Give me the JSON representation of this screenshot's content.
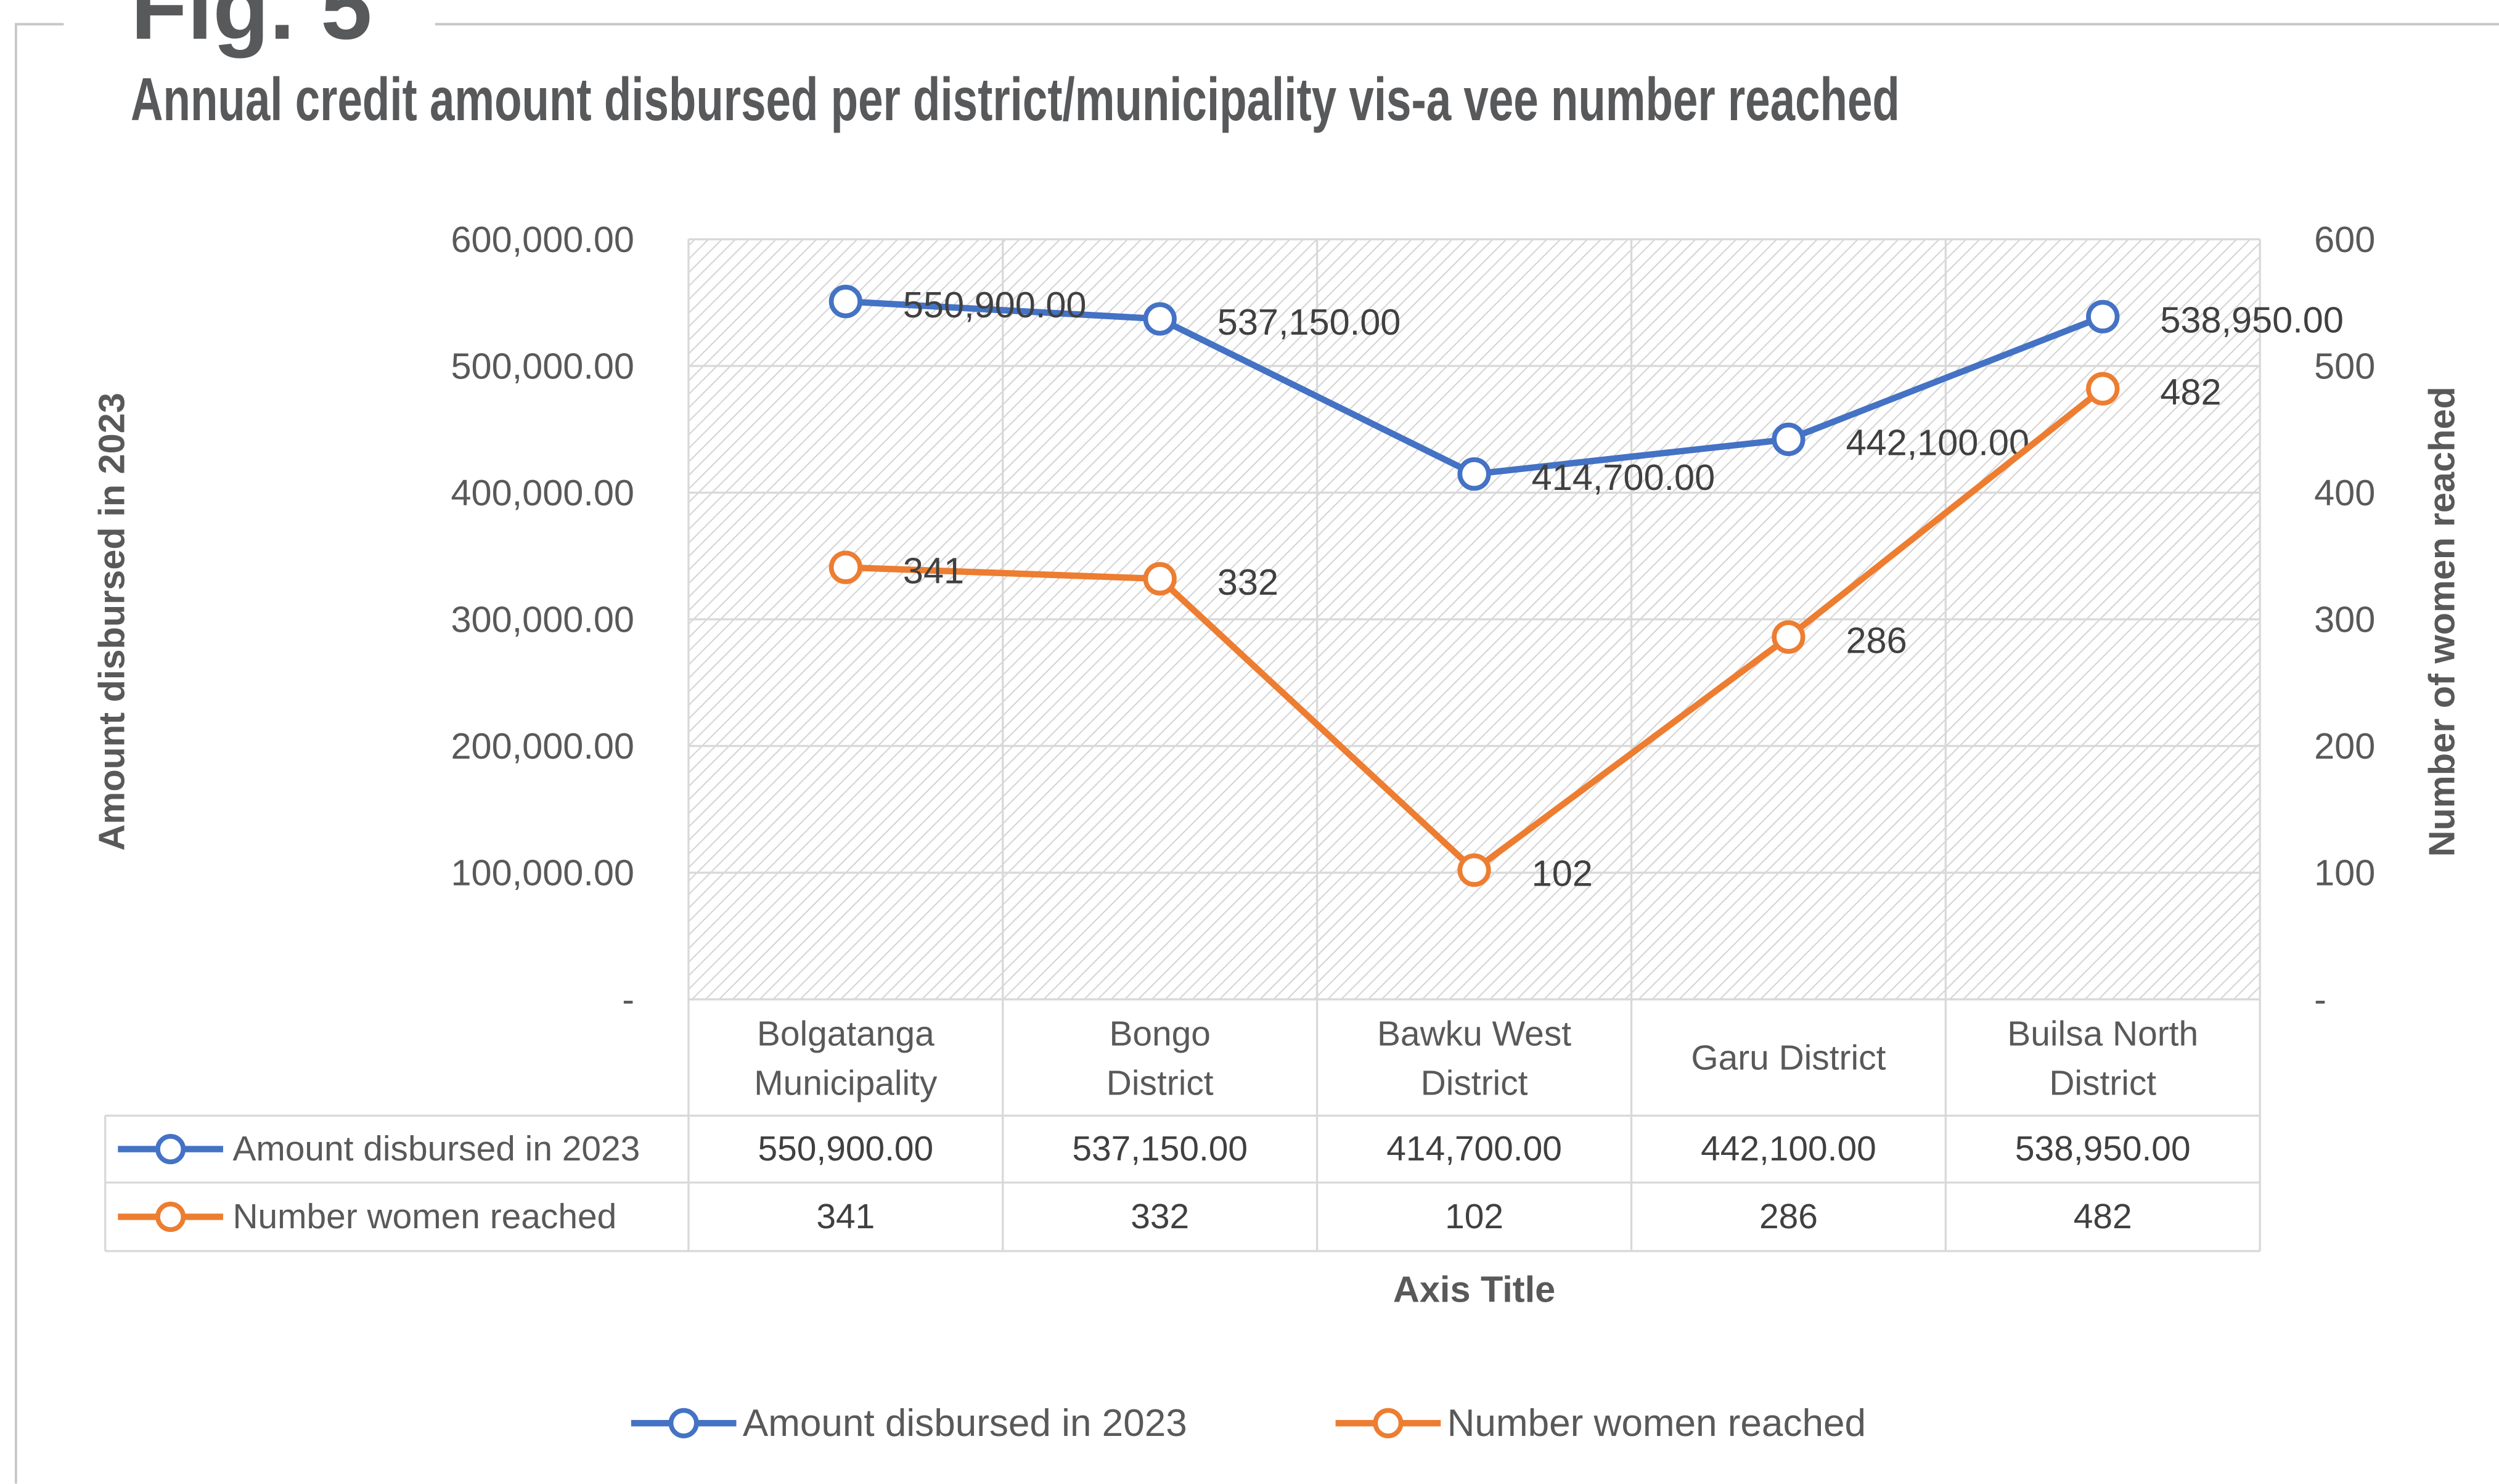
{
  "chart_data": {
    "type": "line",
    "figure_label": "Fig. 5",
    "title": "Annual credit amount disbursed per district/municipality vis-a vee number reached",
    "categories": [
      "Bolgatanga Municipality",
      "Bongo District",
      "Bawku West District",
      "Garu District",
      "Builsa North District"
    ],
    "series": [
      {
        "name": "Amount disbursed in 2023",
        "color": "#4472c4",
        "axis": "y",
        "values": [
          550900,
          537150,
          414700,
          442100,
          538950
        ],
        "value_labels": [
          "550,900.00",
          "537,150.00",
          "414,700.00",
          "442,100.00",
          "538,950.00"
        ]
      },
      {
        "name": "Number women reached",
        "color": "#ed7d31",
        "axis": "y2",
        "values": [
          341,
          332,
          102,
          286,
          482
        ]
      }
    ],
    "ylim": [
      0,
      600000
    ],
    "yticks": [
      {
        "value": 0,
        "label": "-"
      },
      {
        "value": 100000,
        "label": "100,000.00"
      },
      {
        "value": 200000,
        "label": "200,000.00"
      },
      {
        "value": 300000,
        "label": "300,000.00"
      },
      {
        "value": 400000,
        "label": "400,000.00"
      },
      {
        "value": 500000,
        "label": "500,000.00"
      },
      {
        "value": 600000,
        "label": "600,000.00"
      }
    ],
    "y2lim": [
      0,
      600
    ],
    "y2ticks": [
      {
        "value": 0,
        "label": "-"
      },
      100,
      200,
      300,
      400,
      500,
      600
    ],
    "ylabel": "Amount disbursed in 2023",
    "y2label": "Number of women reached",
    "xlabel": "Axis Title",
    "grid": true,
    "legend": "bottom",
    "data_table": true
  }
}
